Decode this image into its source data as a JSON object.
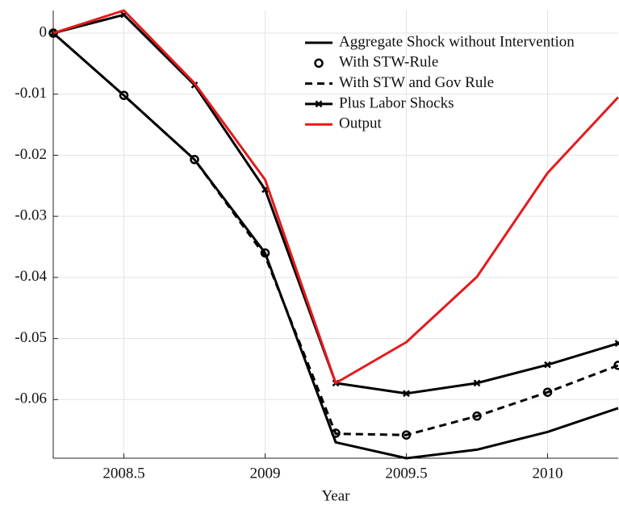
{
  "chart_data": {
    "type": "line",
    "xlabel": "Year",
    "x": [
      2008.25,
      2008.5,
      2008.75,
      2009,
      2009.25,
      2009.5,
      2009.75,
      2010,
      2010.25
    ],
    "xlim": [
      2008.25,
      2010.25
    ],
    "xticks": [
      2008.5,
      2009,
      2009.5,
      2010
    ],
    "ylim": [
      -0.0696,
      0.0037
    ],
    "yticks": [
      0,
      -0.01,
      -0.02,
      -0.03,
      -0.04,
      -0.05,
      -0.06
    ],
    "grid": true,
    "legend": "upper right",
    "series": [
      {
        "name": "Aggregate Shock without Intervention",
        "color": "#000000",
        "line_style": "solid",
        "marker": "none",
        "values": [
          0,
          -0.0102,
          -0.0207,
          -0.036,
          -0.067,
          -0.0696,
          -0.0682,
          -0.0653,
          -0.0614
        ]
      },
      {
        "name": "With STW-Rule",
        "color": "#000000",
        "line_style": "none",
        "marker": "circle",
        "values": [
          0,
          -0.0102,
          -0.0207,
          -0.036,
          -0.0655,
          -0.0658,
          -0.0627,
          -0.0588,
          -0.0544
        ]
      },
      {
        "name": "With STW and Gov Rule",
        "color": "#000000",
        "line_style": "dashed",
        "marker": "none",
        "values": [
          0,
          -0.0102,
          -0.0207,
          -0.0365,
          -0.0656,
          -0.0658,
          -0.0627,
          -0.0588,
          -0.0544
        ]
      },
      {
        "name": "Plus Labor Shocks",
        "color": "#000000",
        "line_style": "solid",
        "marker": "x",
        "values": [
          0,
          0.003,
          -0.0085,
          -0.0256,
          -0.0573,
          -0.059,
          -0.0573,
          -0.0543,
          -0.0508
        ]
      },
      {
        "name": "Output",
        "color": "#e41a1c",
        "line_style": "solid",
        "marker": "none",
        "values": [
          0,
          0.0037,
          -0.0082,
          -0.024,
          -0.0573,
          -0.0506,
          -0.0399,
          -0.0229,
          -0.0105
        ]
      }
    ]
  }
}
